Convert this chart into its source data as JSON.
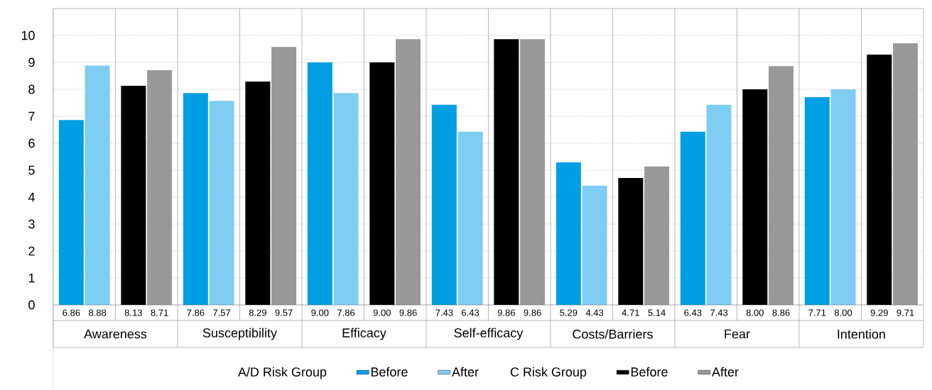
{
  "chart_data": {
    "type": "bar",
    "categories": [
      "Awareness",
      "Susceptibility",
      "Efficacy",
      "Self-efficacy",
      "Costs/Barriers",
      "Fear",
      "Intention"
    ],
    "series": [
      {
        "name": "Before",
        "color": "#009fe3",
        "values": [
          6.86,
          7.86,
          9.0,
          7.43,
          5.29,
          6.43,
          7.71
        ],
        "value_labels": [
          "6.86",
          "7.86",
          "9.00",
          "7.43",
          "5.29",
          "6.43",
          "7.71"
        ]
      },
      {
        "name": "After",
        "color": "#7fcdf2",
        "values": [
          8.88,
          7.57,
          7.86,
          6.43,
          4.43,
          7.43,
          8.0
        ],
        "value_labels": [
          "8.88",
          "7.57",
          "7.86",
          "6.43",
          "4.43",
          "7.43",
          "8.00"
        ]
      },
      {
        "name": "Before",
        "color": "#000000",
        "values": [
          8.13,
          8.29,
          9.0,
          9.86,
          4.71,
          8.0,
          9.29
        ],
        "value_labels": [
          "8.13",
          "8.29",
          "9.00",
          "9.86",
          "4.71",
          "8.00",
          "9.29"
        ]
      },
      {
        "name": "After",
        "color": "#999999",
        "values": [
          8.71,
          9.57,
          9.86,
          9.86,
          5.14,
          8.86,
          9.71
        ],
        "value_labels": [
          "8.71",
          "9.57",
          "9.86",
          "9.86",
          "5.14",
          "8.86",
          "9.71"
        ]
      }
    ],
    "ylim": [
      0,
      11
    ],
    "yticks": [
      0,
      1,
      2,
      3,
      4,
      5,
      6,
      7,
      8,
      9,
      10
    ],
    "grid": true,
    "legend": "bottom",
    "annotations": [
      "A/D Risk Group",
      "C Risk Group"
    ]
  }
}
